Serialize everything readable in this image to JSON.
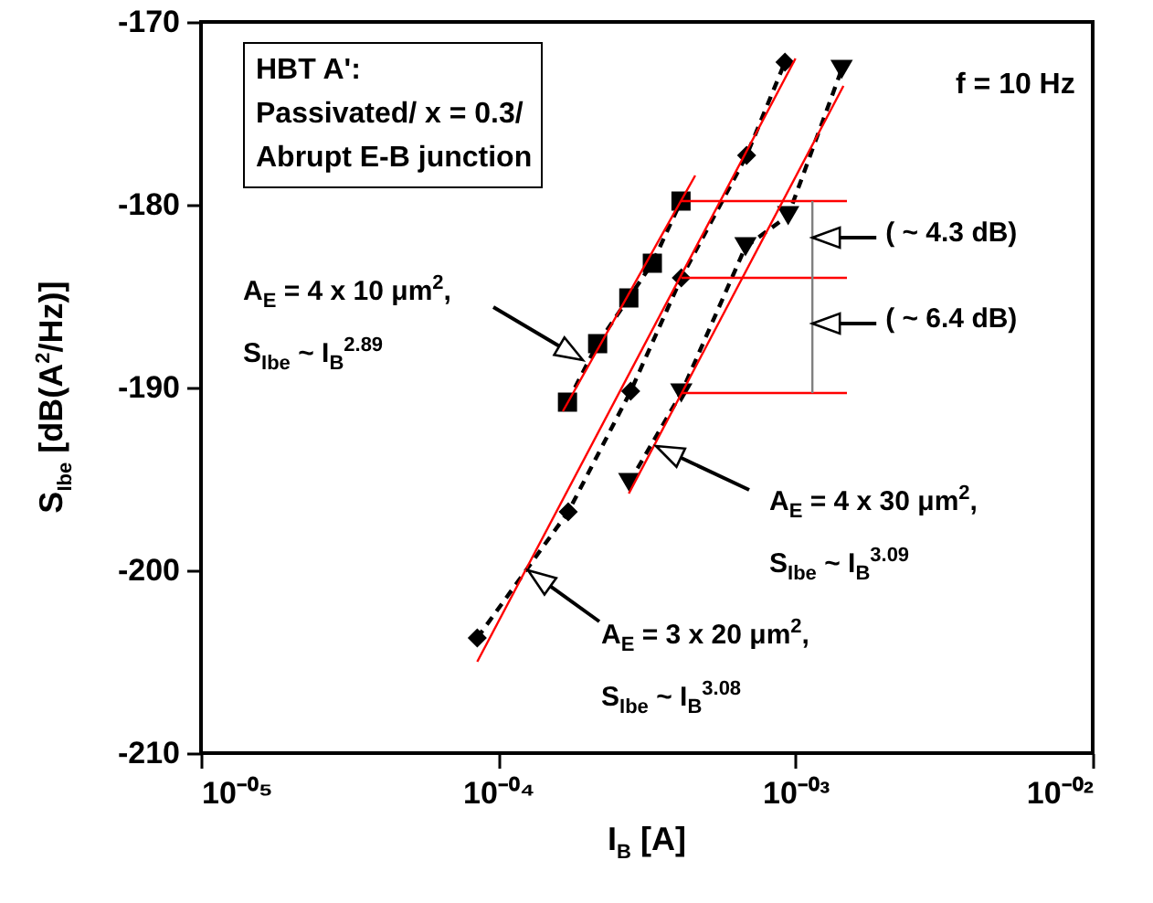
{
  "chart_data": {
    "type": "line",
    "xlabel": "I$_{B}$ [A]",
    "ylabel": "S$_{Ibe}$ [dB(A$^{2}$/Hz)]",
    "log": "x",
    "xlim": [
      1e-05,
      0.01
    ],
    "ylim": [
      -210,
      -170
    ],
    "xticks": [
      {
        "value": 1e-05,
        "label": "10⁻⁰⁵"
      },
      {
        "value": 0.0001,
        "label": "10⁻⁰⁴"
      },
      {
        "value": 0.001,
        "label": "10⁻⁰³"
      },
      {
        "value": 0.01,
        "label": "10⁻⁰²"
      }
    ],
    "yticks": [
      -210,
      -200,
      -190,
      -180,
      -170
    ],
    "grid": false,
    "series": [
      {
        "color": "#000000",
        "marker": "square",
        "line_style": "dashed",
        "x": [
          0.000171,
          0.000216,
          0.000275,
          0.00033,
          0.000412
        ],
        "values": [
          -190.8,
          -187.6,
          -185.1,
          -183.2,
          -179.8
        ]
      },
      {
        "color": "#000000",
        "marker": "diamond",
        "line_style": "dashed",
        "x": [
          8.5e-05,
          0.000172,
          0.000279,
          0.000413,
          0.000685,
          0.000922
        ],
        "values": [
          -203.7,
          -196.8,
          -190.2,
          -184.0,
          -177.3,
          -172.2
        ]
      },
      {
        "color": "#000000",
        "marker": "triangle",
        "line_style": "dashed",
        "x": [
          0.000276,
          0.000413,
          0.000679,
          0.000945,
          0.00143
        ],
        "values": [
          -195.2,
          -190.3,
          -182.3,
          -180.6,
          -172.6
        ]
      },
      {
        "color": "#ff0000",
        "marker": "none",
        "line_style": "solid",
        "x": [
          0.000165,
          0.00046
        ],
        "values": [
          -191.3,
          -178.4
        ]
      },
      {
        "color": "#ff0000",
        "marker": "none",
        "line_style": "solid",
        "x": [
          8.5e-05,
          0.001
        ],
        "values": [
          -205.0,
          -172.0
        ]
      },
      {
        "color": "#ff0000",
        "marker": "none",
        "line_style": "solid",
        "x": [
          0.000275,
          0.00145
        ],
        "values": [
          -195.8,
          -173.5
        ]
      },
      {
        "color": "#ff0000",
        "marker": "none",
        "line_style": "solid",
        "x": [
          0.000412,
          0.00149
        ],
        "values": [
          -179.8,
          -179.8
        ]
      },
      {
        "color": "#ff0000",
        "marker": "none",
        "line_style": "solid",
        "x": [
          0.000413,
          0.00149
        ],
        "values": [
          -184.0,
          -184.0
        ]
      },
      {
        "color": "#ff0000",
        "marker": "none",
        "line_style": "solid",
        "x": [
          0.000413,
          0.00149
        ],
        "values": [
          -190.3,
          -190.3
        ]
      },
      {
        "color": "#808080",
        "marker": "none",
        "line_style": "solid",
        "x": [
          0.00114,
          0.00114
        ],
        "values": [
          -179.8,
          -190.3
        ]
      }
    ],
    "annotations": [
      "HBT A':\nPassivated/ x = 0.3/\nAbrupt E-B junction",
      "f = 10 Hz",
      "A$_{E}$ = 4 x 10 μm$^{2}$,\nS$_{Ibe}$ ~ I$_{B}$$^{2.89}$",
      {
        "text": "( ~ 4.3 dB)",
        "x": 0.00114,
        "y": -181.8
      },
      {
        "text": "( ~ 6.4 dB)",
        "x": 0.00114,
        "y": -186.5
      },
      "A$_{E}$ = 4 x 30 μm$^{2}$,\nS$_{Ibe}$ ~ I$_{B}$$^{3.09}$",
      "A$_{E}$ = 3 x 20 μm$^{2}$,\nS$_{Ibe}$ ~ I$_{B}$$^{3.08}$"
    ]
  }
}
